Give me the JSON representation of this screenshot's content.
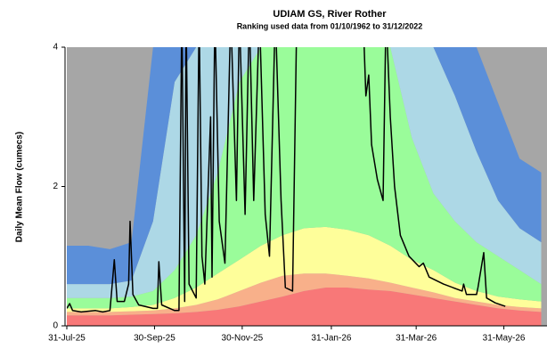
{
  "chart_data": {
    "type": "area",
    "title": "UDIAM GS, River Rother",
    "subtitle": "Ranking used data from 01/10/1962 to 31/12/2022",
    "y_label": "Daily Mean Flow (cumecs)",
    "background_color": "#a6a6a6",
    "x": [
      0,
      15,
      30,
      45,
      60,
      75,
      90,
      105,
      120,
      135,
      150,
      165,
      180,
      195,
      210,
      225,
      240,
      255,
      270,
      285,
      300,
      315,
      330
    ],
    "series": [
      {
        "type": "area",
        "color": "#f87878",
        "values": [
          0.15,
          0.15,
          0.15,
          0.16,
          0.17,
          0.18,
          0.2,
          0.23,
          0.28,
          0.35,
          0.42,
          0.5,
          0.55,
          0.55,
          0.52,
          0.5,
          0.45,
          0.4,
          0.35,
          0.3,
          0.25,
          0.22,
          0.2
        ]
      },
      {
        "type": "area",
        "color": "#f8b08a",
        "values": [
          0.2,
          0.2,
          0.2,
          0.21,
          0.22,
          0.25,
          0.3,
          0.38,
          0.5,
          0.62,
          0.72,
          0.75,
          0.75,
          0.72,
          0.68,
          0.62,
          0.55,
          0.48,
          0.4,
          0.35,
          0.3,
          0.27,
          0.25
        ]
      },
      {
        "type": "area",
        "color": "#fefe9a",
        "values": [
          0.25,
          0.25,
          0.25,
          0.27,
          0.3,
          0.4,
          0.55,
          0.75,
          0.95,
          1.15,
          1.3,
          1.4,
          1.42,
          1.38,
          1.3,
          1.15,
          0.95,
          0.8,
          0.62,
          0.5,
          0.42,
          0.38,
          0.35
        ]
      },
      {
        "type": "area",
        "color": "#9afc9a",
        "values": [
          0.4,
          0.4,
          0.4,
          0.42,
          0.5,
          0.8,
          1.3,
          2.2,
          3.5,
          4,
          4,
          4,
          4,
          4,
          4,
          4,
          2.7,
          1.9,
          1.5,
          1.2,
          1.0,
          0.8,
          0.6
        ]
      },
      {
        "type": "area",
        "color": "#add8e6",
        "values": [
          0.6,
          0.6,
          0.6,
          0.65,
          1.5,
          3.5,
          4,
          4,
          4,
          4,
          4,
          4,
          4,
          4,
          4,
          4,
          4,
          4,
          3.3,
          2.5,
          1.8,
          1.4,
          1.2
        ]
      },
      {
        "type": "area",
        "color": "#5b8fd9",
        "values": [
          1.15,
          1.15,
          1.1,
          1.2,
          4,
          4,
          4,
          4,
          4,
          4,
          4,
          4,
          4,
          4,
          4,
          4,
          4,
          4,
          4,
          4,
          3.2,
          2.4,
          2.2
        ]
      },
      {
        "type": "line",
        "color": "#000000",
        "x": [
          0,
          2,
          4,
          10,
          20,
          25,
          30,
          31,
          33,
          35,
          40,
          43,
          44,
          46,
          50,
          60,
          63,
          64,
          66,
          75,
          78,
          80,
          82,
          83,
          85,
          90,
          92,
          94,
          96,
          100,
          101,
          103,
          106,
          110,
          114,
          118,
          120,
          124,
          127,
          130,
          134,
          138,
          141,
          145,
          149,
          152,
          157,
          160,
          206,
          208,
          210,
          212,
          216,
          220,
          222,
          225,
          228,
          232,
          238,
          245,
          248,
          252,
          262,
          275,
          276,
          278,
          285,
          286,
          290,
          292,
          298,
          305
        ],
        "values": [
          0.25,
          0.32,
          0.22,
          0.2,
          0.22,
          0.2,
          0.22,
          0.45,
          0.95,
          0.35,
          0.35,
          0.6,
          1.5,
          0.45,
          0.3,
          0.25,
          0.25,
          0.92,
          0.3,
          0.22,
          0.22,
          4.5,
          0.35,
          4.5,
          0.6,
          0.4,
          4.5,
          1.0,
          0.6,
          3.0,
          0.7,
          4.5,
          1.5,
          0.9,
          4.5,
          1.8,
          4.5,
          1.6,
          4.5,
          1.8,
          4.5,
          1.6,
          1.0,
          4.5,
          1.8,
          0.55,
          0.5,
          4.5,
          4.5,
          3.3,
          3.6,
          2.6,
          2.1,
          1.8,
          4.5,
          3.0,
          2.0,
          1.3,
          1.0,
          0.85,
          0.9,
          0.7,
          0.6,
          0.5,
          0.6,
          0.45,
          0.45,
          0.55,
          1.05,
          0.4,
          0.33,
          0.28
        ]
      }
    ],
    "xlim": [
      0,
      334
    ],
    "xticks": [
      {
        "value": 0,
        "label": "31-Jul-25"
      },
      {
        "value": 61,
        "label": "30-Sep-25"
      },
      {
        "value": 122,
        "label": "30-Nov-25"
      },
      {
        "value": 184,
        "label": "31-Jan-26"
      },
      {
        "value": 243,
        "label": "31-Mar-26"
      },
      {
        "value": 304,
        "label": "31-May-26"
      }
    ],
    "ylim": [
      0,
      4
    ],
    "yticks": [
      0,
      2,
      4
    ]
  }
}
